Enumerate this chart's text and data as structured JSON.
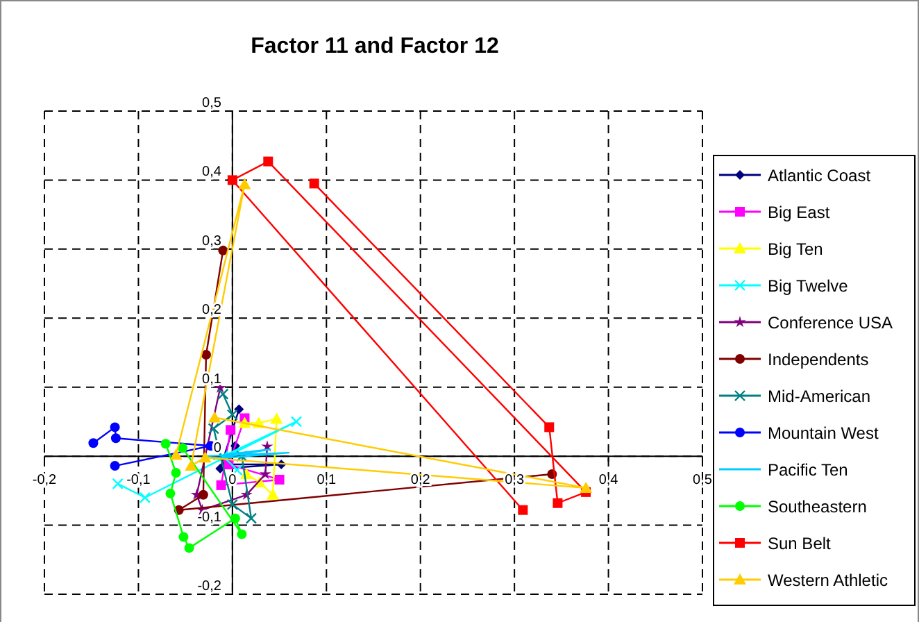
{
  "chart_data": {
    "type": "line",
    "title": "Factor 11 and Factor 12",
    "xlim": [
      -0.2,
      0.5
    ],
    "ylim": [
      -0.2,
      0.5
    ],
    "xticks": [
      {
        "value": -0.2,
        "label": "-0,2"
      },
      {
        "value": -0.1,
        "label": "-0,1"
      },
      0,
      {
        "value": 0.1,
        "label": "0,1"
      },
      {
        "value": 0.2,
        "label": "0,2"
      },
      {
        "value": 0.3,
        "label": "0,3"
      },
      {
        "value": 0.4,
        "label": "0,4"
      },
      {
        "value": 0.5,
        "label": "0,5"
      }
    ],
    "yticks": [
      {
        "value": -0.2,
        "label": "-0,2"
      },
      {
        "value": -0.1,
        "label": "-0,1"
      },
      0,
      {
        "value": 0.1,
        "label": "0,1"
      },
      {
        "value": 0.2,
        "label": "0,2"
      },
      {
        "value": 0.3,
        "label": "0,3"
      },
      {
        "value": 0.4,
        "label": "0,4"
      },
      {
        "value": 0.5,
        "label": "0,5"
      }
    ],
    "grid": true,
    "legend": "right",
    "line_style": "solid",
    "series": [
      {
        "name": "Atlantic Coast",
        "color": "#000080",
        "marker": "diamond",
        "x": [
          0.007,
          -0.013,
          0.052,
          -0.007,
          0.003
        ],
        "values": [
          0.068,
          -0.018,
          -0.012,
          -0.012,
          0.015
        ]
      },
      {
        "name": "Big East",
        "color": "#ff00ff",
        "marker": "square",
        "x": [
          -0.002,
          -0.012,
          0.05,
          -0.004,
          0.013
        ],
        "values": [
          0.038,
          -0.042,
          -0.034,
          -0.012,
          0.055
        ]
      },
      {
        "name": "Big Ten",
        "color": "#ffff00",
        "marker": "triangle",
        "x": [
          0.013,
          0.028,
          0.047,
          0.043,
          0.029,
          0.015
        ],
        "values": [
          0.048,
          0.048,
          0.054,
          -0.056,
          -0.038,
          -0.026
        ]
      },
      {
        "name": "Big Twelve",
        "color": "#00ffff",
        "marker": "cross",
        "x": [
          -0.122,
          -0.093,
          0.068,
          -0.01,
          0.005
        ],
        "values": [
          -0.04,
          -0.06,
          0.05,
          0.0,
          -0.02
        ]
      },
      {
        "name": "Conference USA",
        "color": "#800080",
        "marker": "star",
        "x": [
          -0.013,
          -0.038,
          -0.032,
          0.015,
          0.035,
          0.037
        ],
        "values": [
          0.099,
          -0.056,
          -0.078,
          -0.056,
          -0.026,
          0.014
        ]
      },
      {
        "name": "Independents",
        "color": "#800000",
        "marker": "circle",
        "x": [
          -0.01,
          -0.028,
          -0.031,
          -0.057,
          0.34
        ],
        "values": [
          0.298,
          0.147,
          -0.056,
          -0.078,
          -0.026
        ]
      },
      {
        "name": "Mid-American",
        "color": "#008080",
        "marker": "cross",
        "x": [
          -0.01,
          0.0,
          -0.02,
          0.0,
          0.02,
          0.01
        ],
        "values": [
          0.09,
          0.06,
          0.04,
          -0.07,
          -0.09,
          0.0
        ]
      },
      {
        "name": "Mountain West",
        "color": "#0000ff",
        "marker": "circle",
        "x": [
          -0.148,
          -0.125,
          -0.124,
          -0.023,
          -0.125
        ],
        "values": [
          0.019,
          0.042,
          0.026,
          0.015,
          -0.014
        ]
      },
      {
        "name": "Pacific Ten",
        "color": "#00ccff",
        "marker": "none",
        "x": [
          -0.03,
          0.06,
          -0.02,
          0.04,
          -0.01
        ],
        "values": [
          0.0,
          0.005,
          -0.004,
          0.01,
          0.002
        ]
      },
      {
        "name": "Southeastern",
        "color": "#00ff00",
        "marker": "circle",
        "x": [
          -0.071,
          -0.06,
          -0.066,
          -0.052,
          -0.046,
          0.003,
          0.01,
          -0.053
        ],
        "values": [
          0.018,
          -0.024,
          -0.054,
          -0.117,
          -0.133,
          -0.09,
          -0.113,
          0.012
        ]
      },
      {
        "name": "Sun Belt",
        "color": "#ff0000",
        "marker": "square",
        "x": [
          0.309,
          0.0,
          0.038,
          0.376,
          0.346,
          0.337,
          0.087
        ],
        "values": [
          -0.078,
          0.4,
          0.427,
          -0.052,
          -0.068,
          0.042,
          0.395
        ]
      },
      {
        "name": "Western Athletic",
        "color": "#ffcc00",
        "marker": "triangle",
        "x": [
          -0.06,
          0.013,
          -0.044,
          -0.029,
          0.376,
          -0.019
        ],
        "values": [
          0.002,
          0.394,
          -0.014,
          -0.002,
          -0.046,
          0.056
        ]
      }
    ]
  }
}
